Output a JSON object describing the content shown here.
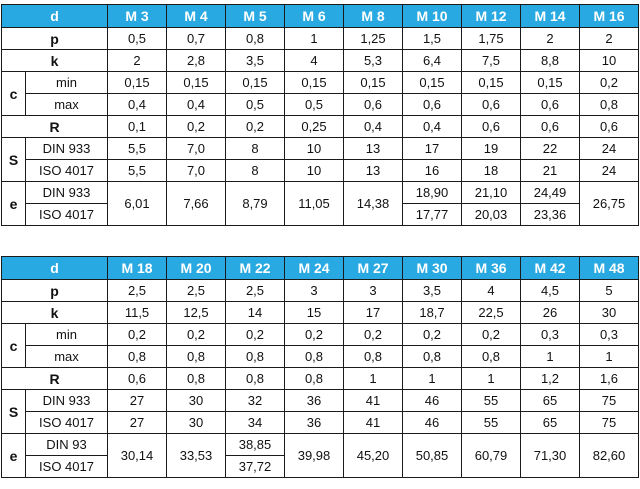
{
  "table1": {
    "header_label": "d",
    "sizes": [
      "M 3",
      "M 4",
      "M 5",
      "M 6",
      "M 8",
      "M 10",
      "M 12",
      "M 14",
      "M 16"
    ],
    "p": [
      "0,5",
      "0,7",
      "0,8",
      "1",
      "1,25",
      "1,5",
      "1,75",
      "2",
      "2"
    ],
    "k": [
      "2",
      "2,8",
      "3,5",
      "4",
      "5,3",
      "6,4",
      "7,5",
      "8,8",
      "10"
    ],
    "c_label": "c",
    "c_min_label": "min",
    "c_min": [
      "0,15",
      "0,15",
      "0,15",
      "0,15",
      "0,15",
      "0,15",
      "0,15",
      "0,15",
      "0,2"
    ],
    "c_max_label": "max",
    "c_max": [
      "0,4",
      "0,4",
      "0,5",
      "0,5",
      "0,6",
      "0,6",
      "0,6",
      "0,6",
      "0,8"
    ],
    "R": [
      "0,1",
      "0,2",
      "0,2",
      "0,25",
      "0,4",
      "0,4",
      "0,6",
      "0,6",
      "0,6"
    ],
    "s_label": "S",
    "s_din_label": "DIN 933",
    "s_din": [
      "5,5",
      "7,0",
      "8",
      "10",
      "13",
      "17",
      "19",
      "22",
      "24"
    ],
    "s_iso_label": "ISO 4017",
    "s_iso": [
      "5,5",
      "7,0",
      "8",
      "10",
      "13",
      "16",
      "18",
      "21",
      "24"
    ],
    "e_label": "e",
    "e_din_label": "DIN 933",
    "e_iso_label": "ISO 4017",
    "e_merged_1": [
      "6,01",
      "7,66",
      "8,79",
      "11,05",
      "14,38"
    ],
    "e_din_split": [
      "18,90",
      "21,10",
      "24,49"
    ],
    "e_iso_split": [
      "17,77",
      "20,03",
      "23,36"
    ],
    "e_merged_2": [
      "26,75"
    ]
  },
  "table2": {
    "header_label": "d",
    "sizes": [
      "M 18",
      "M 20",
      "M 22",
      "M 24",
      "M 27",
      "M 30",
      "M 36",
      "M 42",
      "M 48"
    ],
    "p": [
      "2,5",
      "2,5",
      "2,5",
      "3",
      "3",
      "3,5",
      "4",
      "4,5",
      "5"
    ],
    "k": [
      "11,5",
      "12,5",
      "14",
      "15",
      "17",
      "18,7",
      "22,5",
      "26",
      "30"
    ],
    "c_label": "c",
    "c_min_label": "min",
    "c_min": [
      "0,2",
      "0,2",
      "0,2",
      "0,2",
      "0,2",
      "0,2",
      "0,2",
      "0,3",
      "0,3"
    ],
    "c_max_label": "max",
    "c_max": [
      "0,8",
      "0,8",
      "0,8",
      "0,8",
      "0,8",
      "0,8",
      "0,8",
      "1",
      "1"
    ],
    "R": [
      "0,6",
      "0,8",
      "0,8",
      "0,8",
      "1",
      "1",
      "1",
      "1,2",
      "1,6"
    ],
    "s_label": "S",
    "s_din_label": "DIN 933",
    "s_din": [
      "27",
      "30",
      "32",
      "36",
      "41",
      "46",
      "55",
      "65",
      "75"
    ],
    "s_iso_label": "ISO 4017",
    "s_iso": [
      "27",
      "30",
      "34",
      "36",
      "41",
      "46",
      "55",
      "65",
      "75"
    ],
    "e_label": "e",
    "e_din_label": "DIN 93",
    "e_iso_label": "ISO 4017",
    "e_merged_1": [
      "30,14",
      "33,53"
    ],
    "e_din_split": [
      "38,85"
    ],
    "e_iso_split": [
      "37,72"
    ],
    "e_merged_2": [
      "39,98",
      "45,20",
      "50,85",
      "60,79",
      "71,30",
      "82,60"
    ]
  },
  "row_labels": {
    "p": "p",
    "k": "k",
    "R": "R"
  }
}
